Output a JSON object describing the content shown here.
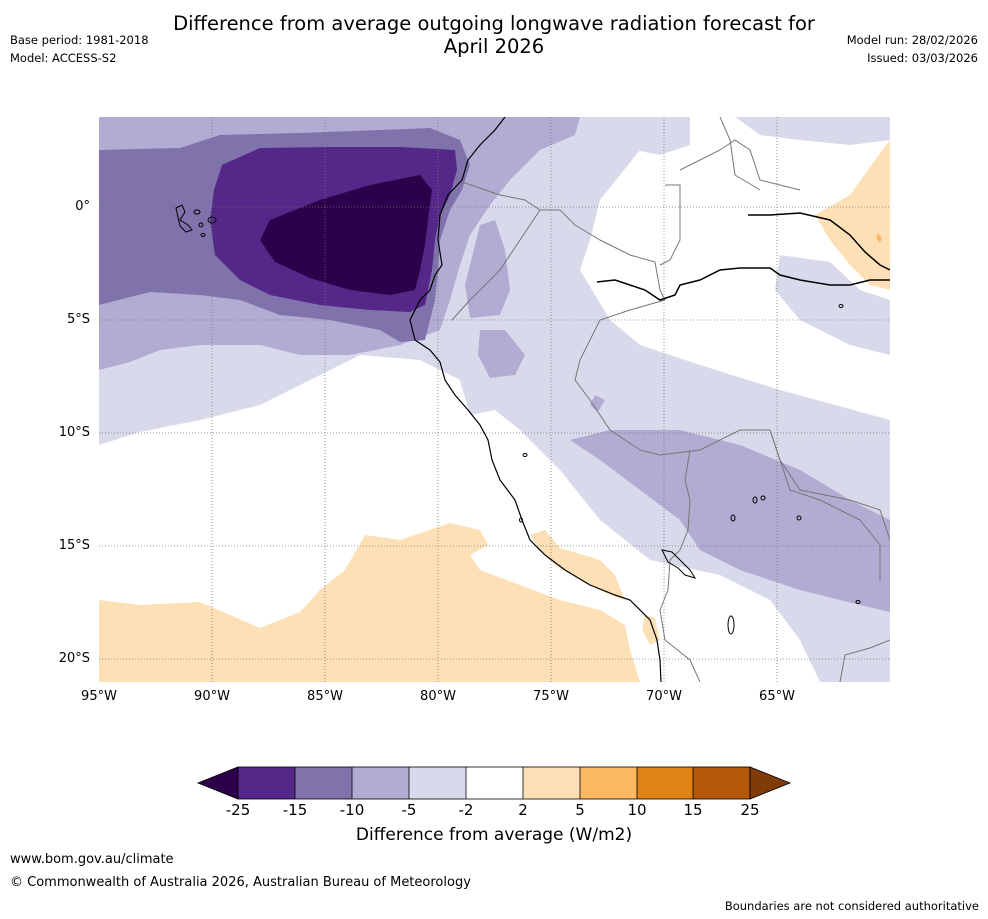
{
  "header": {
    "title_line1": "Difference from average outgoing longwave radiation forecast for",
    "title_line2": "April 2026",
    "base_period": "Base period: 1981-2018",
    "model": "Model: ACCESS-S2",
    "model_run": "Model run: 28/02/2026",
    "issued": "Issued: 03/03/2026"
  },
  "map": {
    "lat_labels": [
      "0°",
      "5°S",
      "10°S",
      "15°S",
      "20°S"
    ],
    "lon_labels": [
      "95°W",
      "90°W",
      "85°W",
      "80°W",
      "75°W",
      "70°W",
      "65°W"
    ],
    "region": "Eastern tropical Pacific / western South America"
  },
  "colorbar": {
    "ticks": [
      "-25",
      "-15",
      "-10",
      "-5",
      "-2",
      "2",
      "5",
      "10",
      "15",
      "25"
    ],
    "colors": {
      "below_-25": "#2d004b",
      "-25_-15": "#542788",
      "-15_-10": "#8073ac",
      "-10_-5": "#b2abd2",
      "-5_-2": "#d8daeb",
      "-2_2": "#ffffff",
      "2_5": "#fee0b6",
      "5_10": "#fdb863",
      "10_15": "#e08214",
      "15_25": "#b35806",
      "above_25": "#7f3b08"
    },
    "title": "Difference from average (W/m2)"
  },
  "footer": {
    "url": "www.bom.gov.au/climate",
    "copyright": "© Commonwealth of Australia 2026, Australian Bureau of Meteorology",
    "disclaimer": "Boundaries are not considered authoritative"
  }
}
